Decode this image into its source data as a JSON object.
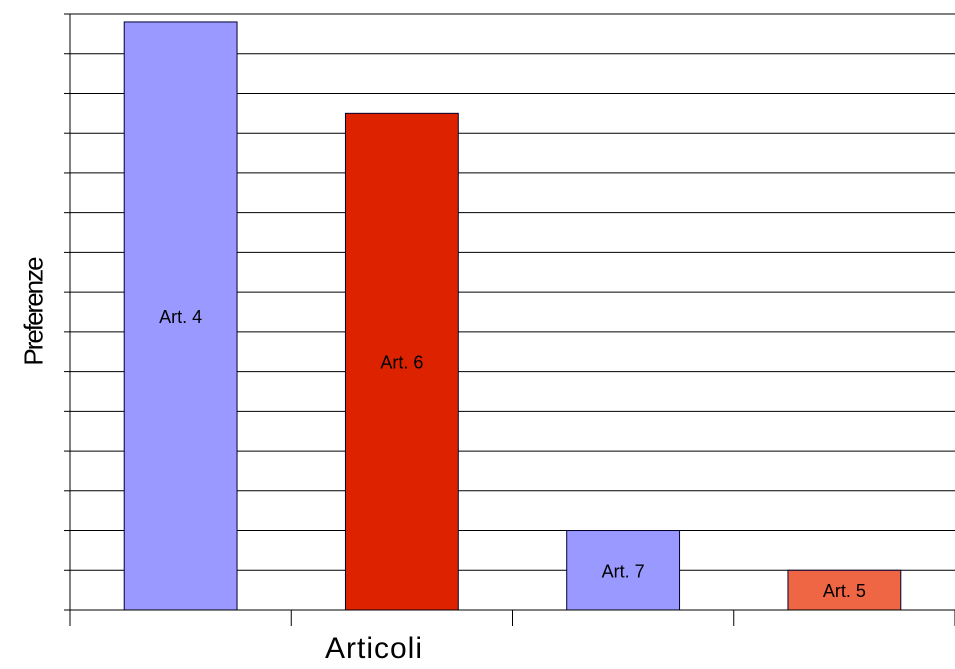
{
  "chart_data": {
    "type": "bar",
    "categories": [
      "Art. 4",
      "Art. 6",
      "Art. 7",
      "Art. 5"
    ],
    "values": [
      14.8,
      12.5,
      2.0,
      1.0
    ],
    "colors": [
      "#9999ff",
      "#dd2200",
      "#9999ff",
      "#ee6644"
    ],
    "title": "",
    "xlabel": "Articoli",
    "ylabel": "Preferenze",
    "ylim": [
      0,
      15
    ],
    "grid": true,
    "legend": "none"
  }
}
